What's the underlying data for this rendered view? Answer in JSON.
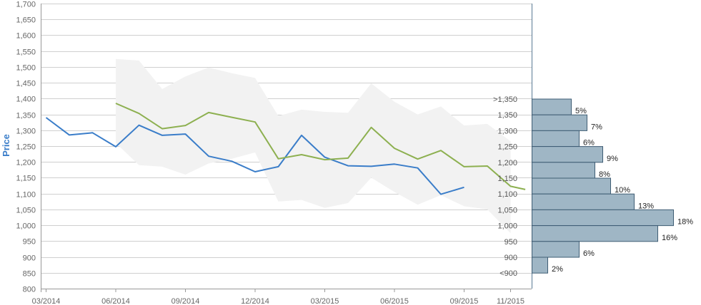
{
  "chart_data": {
    "type": "line",
    "ylabel": "Price",
    "ylim": [
      800,
      1700
    ],
    "yticks": [
      800,
      850,
      900,
      950,
      1000,
      1050,
      1100,
      1150,
      1200,
      1250,
      1300,
      1350,
      1400,
      1450,
      1500,
      1550,
      1600,
      1650,
      1700
    ],
    "ytick_labels": [
      "800",
      "850",
      "900",
      "950",
      "1,000",
      "1,050",
      "1,100",
      "1,150",
      "1,200",
      "1,250",
      "1,300",
      "1,350",
      "1,400",
      "1,450",
      "1,500",
      "1,550",
      "1,600",
      "1,650",
      "1,700"
    ],
    "xticks": [
      {
        "date": "2014-03",
        "label": "03/2014"
      },
      {
        "date": "2014-06",
        "label": "06/2014"
      },
      {
        "date": "2014-09",
        "label": "09/2014"
      },
      {
        "date": "2014-12",
        "label": "12/2014"
      },
      {
        "date": "2015-03",
        "label": "03/2015"
      },
      {
        "date": "2015-06",
        "label": "06/2015"
      },
      {
        "date": "2015-09",
        "label": "09/2015"
      },
      {
        "date": "2015-11",
        "label": "11/2015"
      }
    ],
    "grid": true,
    "series": [
      {
        "color": "#3a7dc9",
        "x": [
          "2014-03",
          "2014-04",
          "2014-05",
          "2014-06",
          "2014-07",
          "2014-08",
          "2014-09",
          "2014-10",
          "2014-11",
          "2014-12",
          "2015-01",
          "2015-02",
          "2015-03",
          "2015-04",
          "2015-05",
          "2015-06",
          "2015-07",
          "2015-08",
          "2015-09"
        ],
        "values": [
          1340,
          1285,
          1292,
          1248,
          1316,
          1284,
          1288,
          1218,
          1202,
          1169,
          1185,
          1284,
          1215,
          1188,
          1186,
          1193,
          1181,
          1098,
          1120
        ]
      },
      {
        "color": "#8db050",
        "x": [
          "2014-06",
          "2014-07",
          "2014-08",
          "2014-09",
          "2014-10",
          "2014-11",
          "2014-12",
          "2015-01",
          "2015-02",
          "2015-03",
          "2015-04",
          "2015-05",
          "2015-06",
          "2015-07",
          "2015-08",
          "2015-09",
          "2015-10",
          "2015-11",
          "2015-11-20"
        ],
        "values": [
          1385,
          1353,
          1305,
          1315,
          1356,
          1341,
          1326,
          1210,
          1223,
          1207,
          1212,
          1309,
          1243,
          1209,
          1236,
          1185,
          1187,
          1123,
          1113
        ]
      }
    ],
    "band": {
      "color": "#f2f2f2",
      "x": [
        "2014-06",
        "2014-07",
        "2014-08",
        "2014-09",
        "2014-10",
        "2014-11",
        "2014-12",
        "2015-01",
        "2015-02",
        "2015-03",
        "2015-04",
        "2015-05",
        "2015-06",
        "2015-07",
        "2015-08",
        "2015-09",
        "2015-10",
        "2015-11"
      ],
      "upper": [
        1525,
        1520,
        1430,
        1470,
        1498,
        1480,
        1465,
        1345,
        1365,
        1358,
        1355,
        1448,
        1390,
        1350,
        1375,
        1315,
        1320,
        1265
      ],
      "lower": [
        1260,
        1190,
        1185,
        1160,
        1195,
        1210,
        1230,
        1075,
        1080,
        1055,
        1070,
        1150,
        1105,
        1065,
        1095,
        1060,
        1050,
        975
      ]
    },
    "distribution": {
      "color": "#9fb6c5",
      "bins": [
        {
          "label": ">1,350",
          "percent": 5,
          "percent_label": "5%"
        },
        {
          "label": "1,350",
          "percent": 7,
          "percent_label": "7%"
        },
        {
          "label": "1,300",
          "percent": 6,
          "percent_label": "6%"
        },
        {
          "label": "1,250",
          "percent": 9,
          "percent_label": "9%"
        },
        {
          "label": "1,200",
          "percent": 8,
          "percent_label": "8%"
        },
        {
          "label": "1,150",
          "percent": 10,
          "percent_label": "10%"
        },
        {
          "label": "1,100",
          "percent": 13,
          "percent_label": "13%"
        },
        {
          "label": "1,050",
          "percent": 18,
          "percent_label": "18%"
        },
        {
          "label": "1,000",
          "percent": 16,
          "percent_label": "16%"
        },
        {
          "label": "950",
          "percent": 6,
          "percent_label": "6%"
        },
        {
          "label": "900",
          "percent": 2,
          "percent_label": "2%"
        },
        {
          "label": "<900",
          "percent": null,
          "percent_label": ""
        }
      ]
    }
  }
}
